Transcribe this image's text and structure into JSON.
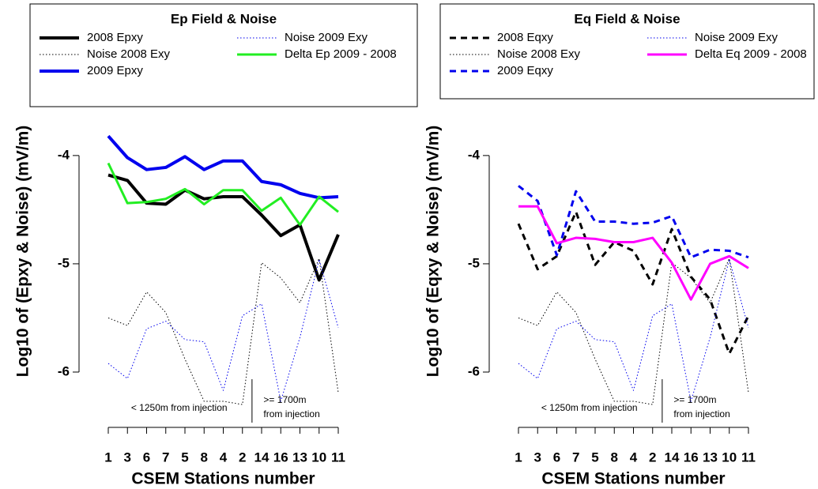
{
  "chart_data": [
    {
      "type": "line",
      "title": "Ep Field & Noise",
      "xlabel": "CSEM Stations number",
      "ylabel": "Log10 of (Epxy & Noise) (mV/m)",
      "categories": [
        "1",
        "3",
        "6",
        "7",
        "5",
        "8",
        "4",
        "2",
        "14",
        "16",
        "13",
        "10",
        "11"
      ],
      "ylim": [
        -6.5,
        -2.6
      ],
      "yticks": [
        -6,
        -5,
        -4
      ],
      "legend": "top",
      "annotations": [
        "< 1250m from injection",
        ">= 1700m",
        "from injection"
      ],
      "series": [
        {
          "name": "2008 Epxy",
          "color": "#000000",
          "dash": "solid",
          "width": 4,
          "values": [
            -4.18,
            -4.23,
            -4.44,
            -4.45,
            -4.32,
            -4.4,
            -4.38,
            -4.38,
            -4.55,
            -4.74,
            -4.64,
            -5.15,
            -4.73
          ]
        },
        {
          "name": "Noise 2008 Exy",
          "color": "#000000",
          "dash": "dotted",
          "width": 1,
          "values": [
            -5.5,
            -5.57,
            -5.26,
            -5.45,
            -5.88,
            -6.27,
            -6.27,
            -6.3,
            -4.99,
            -5.13,
            -5.36,
            -4.95,
            -6.19
          ]
        },
        {
          "name": "2009 Epxy",
          "color": "#0000ee",
          "dash": "solid",
          "width": 4,
          "values": [
            -3.82,
            -4.02,
            -4.13,
            -4.11,
            -4.01,
            -4.13,
            -4.05,
            -4.05,
            -4.24,
            -4.27,
            -4.35,
            -4.39,
            -4.38
          ]
        },
        {
          "name": "Noise 2009 Exy",
          "color": "#0000ee",
          "dash": "dotted",
          "width": 1,
          "values": [
            -5.92,
            -6.06,
            -5.6,
            -5.53,
            -5.7,
            -5.72,
            -6.17,
            -5.48,
            -5.37,
            -6.27,
            -5.68,
            -4.96,
            -5.59
          ]
        },
        {
          "name": "Delta Ep 2009 - 2008",
          "color": "#22ee22",
          "dash": "solid",
          "width": 3,
          "values": [
            -4.07,
            -4.44,
            -4.43,
            -4.4,
            -4.31,
            -4.45,
            -4.32,
            -4.32,
            -4.51,
            -4.39,
            -4.64,
            -4.38,
            -4.52
          ]
        }
      ]
    },
    {
      "type": "line",
      "title": "Eq Field & Noise",
      "xlabel": "CSEM Stations number",
      "ylabel": "Log10 of (Eqxy & Noise) (mV/m)",
      "categories": [
        "1",
        "3",
        "6",
        "7",
        "5",
        "8",
        "4",
        "2",
        "14",
        "16",
        "13",
        "10",
        "11"
      ],
      "ylim": [
        -6.5,
        -2.6
      ],
      "yticks": [
        -6,
        -5,
        -4
      ],
      "legend": "top",
      "annotations": [
        "< 1250m from injection",
        ">= 1700m",
        "from injection"
      ],
      "series": [
        {
          "name": "2008 Eqxy",
          "color": "#000000",
          "dash": "dashed",
          "width": 3,
          "values": [
            -4.63,
            -5.05,
            -4.93,
            -4.52,
            -5.01,
            -4.8,
            -4.88,
            -5.19,
            -4.68,
            -5.12,
            -5.33,
            -5.83,
            -5.48
          ]
        },
        {
          "name": "Noise 2008 Exy",
          "color": "#000000",
          "dash": "dotted",
          "width": 1,
          "values": [
            -5.5,
            -5.57,
            -5.26,
            -5.45,
            -5.88,
            -6.27,
            -6.27,
            -6.3,
            -4.99,
            -5.13,
            -5.36,
            -4.95,
            -6.19
          ]
        },
        {
          "name": "2009 Eqxy",
          "color": "#0000ee",
          "dash": "dashed",
          "width": 3,
          "values": [
            -4.28,
            -4.42,
            -4.92,
            -4.33,
            -4.61,
            -4.61,
            -4.63,
            -4.62,
            -4.56,
            -4.94,
            -4.87,
            -4.88,
            -4.94
          ]
        },
        {
          "name": "Noise 2009 Exy",
          "color": "#0000ee",
          "dash": "dotted",
          "width": 1,
          "values": [
            -5.92,
            -6.06,
            -5.6,
            -5.53,
            -5.7,
            -5.72,
            -6.17,
            -5.48,
            -5.37,
            -6.27,
            -5.68,
            -4.96,
            -5.59
          ]
        },
        {
          "name": "Delta Eq 2009 - 2008",
          "color": "#ff00ff",
          "dash": "solid",
          "width": 3,
          "values": [
            -4.47,
            -4.47,
            -4.81,
            -4.76,
            -4.77,
            -4.8,
            -4.8,
            -4.76,
            -4.99,
            -5.33,
            -5.0,
            -4.93,
            -5.04
          ]
        }
      ]
    }
  ]
}
